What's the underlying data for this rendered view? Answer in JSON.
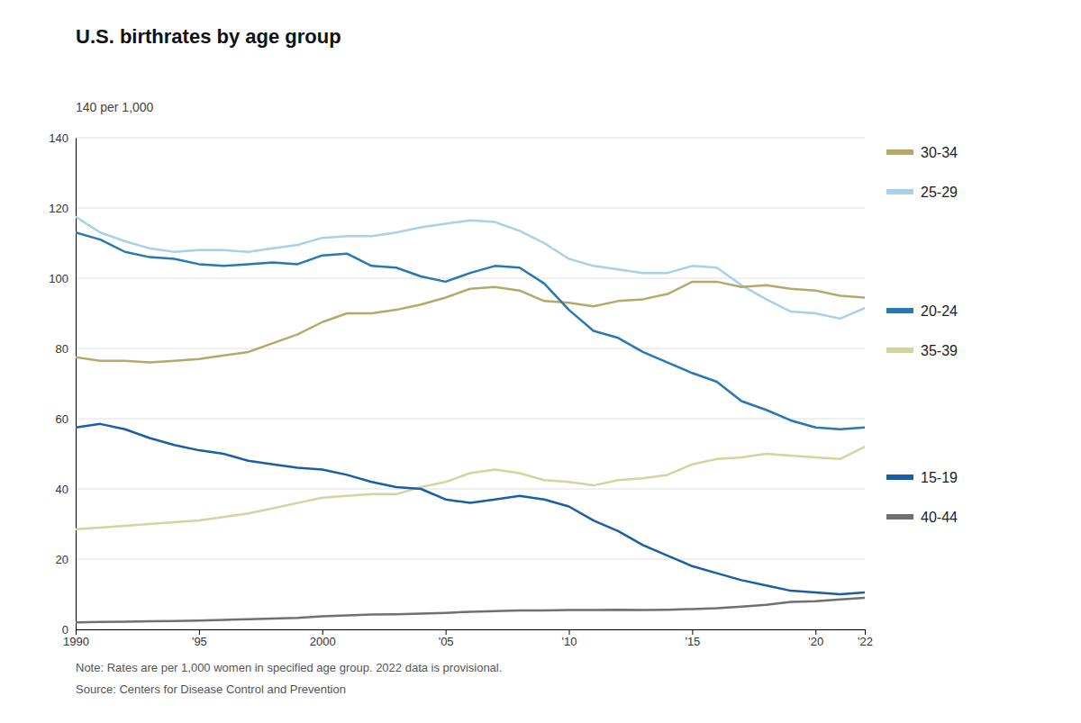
{
  "chart_data": {
    "type": "line",
    "title": "U.S. birthrates by age group",
    "ylabel": "140 per 1,000",
    "annotations": [
      "Note: Rates are per 1,000 women in specified age group. 2022 data is provisional.",
      "Source: Centers for Disease Control and Prevention"
    ],
    "x": [
      1990,
      1991,
      1992,
      1993,
      1994,
      1995,
      1996,
      1997,
      1998,
      1999,
      2000,
      2001,
      2002,
      2003,
      2004,
      2005,
      2006,
      2007,
      2008,
      2009,
      2010,
      2011,
      2012,
      2013,
      2014,
      2015,
      2016,
      2017,
      2018,
      2019,
      2020,
      2021,
      2022
    ],
    "series": [
      {
        "name": "25-29",
        "color": "#a8d0e8",
        "values": [
          117.5,
          113.0,
          110.5,
          108.5,
          107.5,
          108.0,
          108.0,
          107.5,
          108.5,
          109.5,
          111.5,
          112.0,
          112.0,
          113.0,
          114.5,
          115.5,
          116.5,
          116.0,
          113.5,
          110.0,
          105.5,
          103.5,
          102.5,
          101.5,
          101.5,
          103.5,
          103.0,
          98.0,
          94.0,
          90.5,
          90.0,
          88.5,
          91.5
        ]
      },
      {
        "name": "30-34",
        "color": "#b5a96a",
        "values": [
          77.5,
          76.5,
          76.5,
          76.0,
          76.5,
          77.0,
          78.0,
          79.0,
          81.5,
          84.0,
          87.5,
          90.0,
          90.0,
          91.0,
          92.5,
          94.5,
          97.0,
          97.5,
          96.5,
          93.5,
          93.0,
          92.0,
          93.5,
          94.0,
          95.5,
          99.0,
          99.0,
          97.5,
          98.0,
          97.0,
          96.5,
          95.0,
          94.5
        ]
      },
      {
        "name": "20-24",
        "color": "#2878b5",
        "values": [
          113.0,
          111.0,
          107.5,
          106.0,
          105.5,
          104.0,
          103.5,
          104.0,
          104.5,
          104.0,
          106.5,
          107.0,
          103.5,
          103.0,
          100.5,
          99.0,
          101.5,
          103.5,
          103.0,
          98.5,
          91.0,
          85.0,
          83.0,
          79.0,
          76.0,
          73.0,
          70.5,
          65.0,
          62.5,
          59.5,
          57.5,
          57.0,
          57.5
        ]
      },
      {
        "name": "35-39",
        "color": "#d4d4a0",
        "values": [
          28.5,
          29.0,
          29.5,
          30.0,
          30.5,
          31.0,
          32.0,
          33.0,
          34.5,
          36.0,
          37.5,
          38.0,
          38.5,
          38.5,
          40.5,
          42.0,
          44.5,
          45.5,
          44.5,
          42.5,
          42.0,
          41.0,
          42.5,
          43.0,
          44.0,
          47.0,
          48.5,
          49.0,
          50.0,
          49.5,
          49.0,
          48.5,
          52.0
        ]
      },
      {
        "name": "15-19",
        "color": "#1a5ea8",
        "values": [
          57.5,
          58.5,
          57.0,
          54.5,
          52.5,
          51.0,
          50.0,
          48.0,
          47.0,
          46.0,
          45.5,
          44.0,
          42.0,
          40.5,
          40.0,
          37.0,
          36.0,
          37.0,
          38.0,
          37.0,
          35.0,
          31.0,
          28.0,
          24.0,
          21.0,
          18.0,
          16.0,
          14.0,
          12.5,
          11.0,
          10.5,
          10.0,
          10.5
        ]
      },
      {
        "name": "40-44",
        "color": "#707070",
        "values": [
          2.0,
          2.1,
          2.2,
          2.3,
          2.4,
          2.5,
          2.7,
          2.9,
          3.1,
          3.3,
          3.7,
          4.0,
          4.2,
          4.3,
          4.5,
          4.7,
          5.0,
          5.2,
          5.4,
          5.4,
          5.5,
          5.5,
          5.6,
          5.5,
          5.6,
          5.8,
          6.0,
          6.5,
          7.0,
          7.8,
          8.0,
          8.5,
          9.0
        ]
      }
    ],
    "xlim": [
      1990,
      2022
    ],
    "ylim": [
      0,
      140
    ],
    "xticks": [
      1990,
      {
        "value": 1995,
        "label": "'95"
      },
      2000,
      {
        "value": 2005,
        "label": "'05"
      },
      {
        "value": 2010,
        "label": "'10"
      },
      {
        "value": 2015,
        "label": "'15"
      },
      {
        "value": 2020,
        "label": "'20"
      },
      {
        "value": 2022,
        "label": "'22"
      }
    ],
    "yticks": [
      0,
      20,
      40,
      60,
      80,
      100,
      120,
      140
    ],
    "grid": true,
    "legend": "right"
  }
}
